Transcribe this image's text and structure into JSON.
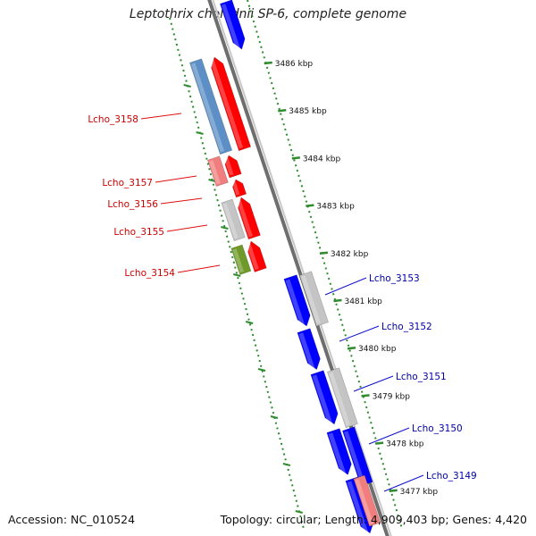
{
  "title": "Leptothrix cholodnii SP-6, complete genome",
  "footer": {
    "accession": "Accession: NC_010524",
    "topology": "Topology: circular; Length: 4,909,403 bp; Genes: 4,420"
  },
  "colors": {
    "forward_cds": "#ff0000",
    "reverse_cds": "#0000ff",
    "tick": "#2e8b2e",
    "backbone": "#808080",
    "forward_label": "#cc0000",
    "reverse_label": "#0000aa"
  },
  "scale": {
    "unit": "kbp",
    "ticks": [
      {
        "label": "3486 kbp",
        "value": 3486
      },
      {
        "label": "3485 kbp",
        "value": 3485
      },
      {
        "label": "3484 kbp",
        "value": 3484
      },
      {
        "label": "3483 kbp",
        "value": 3483
      },
      {
        "label": "3482 kbp",
        "value": 3482
      },
      {
        "label": "3481 kbp",
        "value": 3481
      },
      {
        "label": "3480 kbp",
        "value": 3480
      },
      {
        "label": "3479 kbp",
        "value": 3479
      },
      {
        "label": "3478 kbp",
        "value": 3478
      },
      {
        "label": "3477 kbp",
        "value": 3477
      }
    ]
  },
  "genes": [
    {
      "name": "Lcho_3158",
      "strand": "forward"
    },
    {
      "name": "Lcho_3157",
      "strand": "forward"
    },
    {
      "name": "Lcho_3156",
      "strand": "forward"
    },
    {
      "name": "Lcho_3155",
      "strand": "forward"
    },
    {
      "name": "Lcho_3154",
      "strand": "forward"
    },
    {
      "name": "Lcho_3153",
      "strand": "reverse"
    },
    {
      "name": "Lcho_3152",
      "strand": "reverse"
    },
    {
      "name": "Lcho_3151",
      "strand": "reverse"
    },
    {
      "name": "Lcho_3150",
      "strand": "reverse"
    },
    {
      "name": "Lcho_3149",
      "strand": "reverse"
    }
  ]
}
